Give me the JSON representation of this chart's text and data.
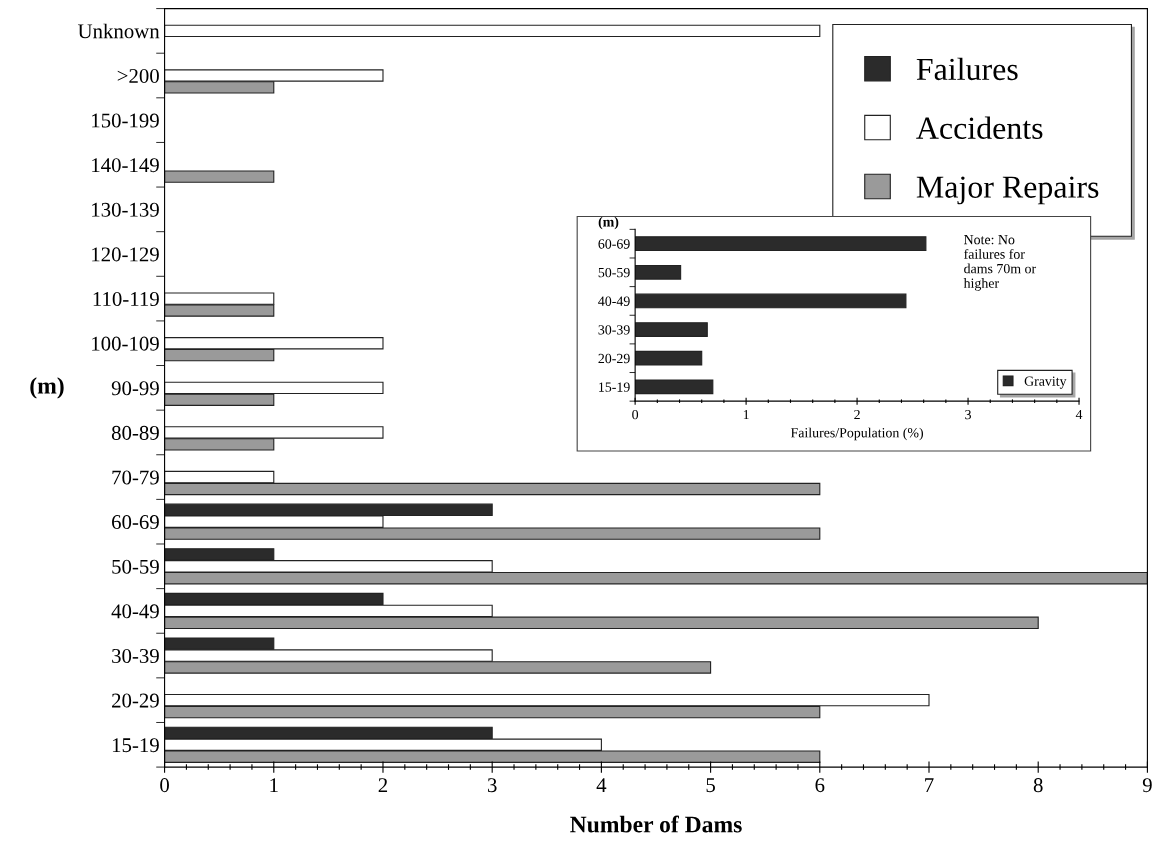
{
  "chart_data": [
    {
      "type": "bar",
      "orientation": "horizontal",
      "xlabel": "Number of Dams",
      "ylabel": "(m)",
      "categories": [
        "Unknown",
        ">200",
        "150-199",
        "140-149",
        "130-139",
        "120-129",
        "110-119",
        "100-109",
        "90-99",
        "80-89",
        "70-79",
        "60-69",
        "50-59",
        "40-49",
        "30-39",
        "20-29",
        "15-19"
      ],
      "series": [
        {
          "name": "Failures",
          "color": "#2b2b2b",
          "values": [
            null,
            null,
            null,
            null,
            null,
            null,
            null,
            null,
            null,
            null,
            null,
            3,
            1,
            2,
            1,
            null,
            3
          ]
        },
        {
          "name": "Accidents",
          "color": "#ffffff",
          "values": [
            6,
            2,
            null,
            null,
            null,
            null,
            1,
            2,
            2,
            2,
            1,
            2,
            3,
            3,
            3,
            7,
            4
          ]
        },
        {
          "name": "Major Repairs",
          "color": "#9a9a9a",
          "values": [
            null,
            1,
            null,
            1,
            null,
            null,
            1,
            1,
            1,
            1,
            6,
            6,
            9,
            8,
            5,
            6,
            6
          ]
        }
      ],
      "xlim": [
        0,
        9
      ],
      "xticks": [
        0,
        {
          "value": 0.2,
          "label": null
        },
        {
          "value": 0.4,
          "label": null
        },
        {
          "value": 0.6,
          "label": null
        },
        {
          "value": 0.8,
          "label": null
        },
        1,
        {
          "value": 1.2,
          "label": null
        },
        {
          "value": 1.4,
          "label": null
        },
        {
          "value": 1.6,
          "label": null
        },
        {
          "value": 1.8,
          "label": null
        },
        2,
        {
          "value": 2.2,
          "label": null
        },
        {
          "value": 2.4,
          "label": null
        },
        {
          "value": 2.6,
          "label": null
        },
        {
          "value": 2.8,
          "label": null
        },
        3,
        {
          "value": 3.2,
          "label": null
        },
        {
          "value": 3.4,
          "label": null
        },
        {
          "value": 3.6,
          "label": null
        },
        {
          "value": 3.8,
          "label": null
        },
        4,
        {
          "value": 4.2,
          "label": null
        },
        {
          "value": 4.4,
          "label": null
        },
        {
          "value": 4.6,
          "label": null
        },
        {
          "value": 4.8,
          "label": null
        },
        5,
        {
          "value": 5.2,
          "label": null
        },
        {
          "value": 5.4,
          "label": null
        },
        {
          "value": 5.6,
          "label": null
        },
        {
          "value": 5.8,
          "label": null
        },
        6,
        {
          "value": 6.2,
          "label": null
        },
        {
          "value": 6.4,
          "label": null
        },
        {
          "value": 6.6,
          "label": null
        },
        {
          "value": 6.8,
          "label": null
        },
        7,
        {
          "value": 7.2,
          "label": null
        },
        {
          "value": 7.4,
          "label": null
        },
        {
          "value": 7.6,
          "label": null
        },
        {
          "value": 7.8,
          "label": null
        },
        8,
        {
          "value": 8.2,
          "label": null
        },
        {
          "value": 8.4,
          "label": null
        },
        {
          "value": 8.6,
          "label": null
        },
        {
          "value": 8.8,
          "label": null
        },
        9
      ],
      "grid": false,
      "legend": "top right"
    },
    {
      "type": "bar",
      "orientation": "horizontal",
      "xlabel": "Failures/Population (%)",
      "ylabel": "(m)",
      "categories": [
        "60-69",
        "50-59",
        "40-49",
        "30-39",
        "20-29",
        "15-19"
      ],
      "series": [
        {
          "name": "Gravity",
          "color": "#2b2b2b",
          "values": [
            2.62,
            0.41,
            2.44,
            0.65,
            0.6,
            0.7
          ]
        }
      ],
      "xlim": [
        0,
        4
      ],
      "xticks": [
        0,
        {
          "value": 0.2,
          "label": null
        },
        {
          "value": 0.4,
          "label": null
        },
        {
          "value": 0.6,
          "label": null
        },
        {
          "value": 0.8,
          "label": null
        },
        1,
        {
          "value": 1.2,
          "label": null
        },
        {
          "value": 1.4,
          "label": null
        },
        {
          "value": 1.6,
          "label": null
        },
        {
          "value": 1.8,
          "label": null
        },
        2,
        {
          "value": 2.2,
          "label": null
        },
        {
          "value": 2.4,
          "label": null
        },
        {
          "value": 2.6,
          "label": null
        },
        {
          "value": 2.8,
          "label": null
        },
        3,
        {
          "value": 3.2,
          "label": null
        },
        {
          "value": 3.4,
          "label": null
        },
        {
          "value": 3.6,
          "label": null
        },
        {
          "value": 3.8,
          "label": null
        },
        4
      ],
      "annotations": [
        "Note: No\nfailures for\ndams 70m or\nhigher"
      ],
      "grid": false,
      "legend": "bottom right"
    }
  ]
}
